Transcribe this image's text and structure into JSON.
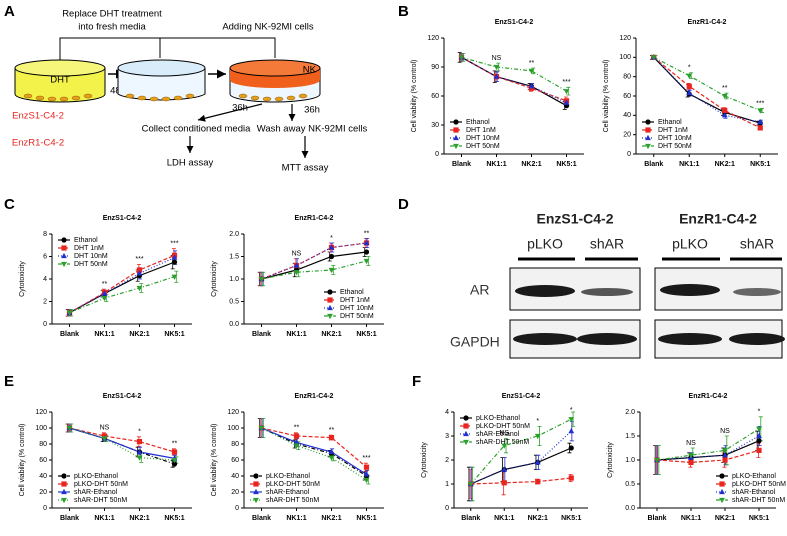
{
  "panel_labels": [
    "A",
    "B",
    "C",
    "D",
    "E",
    "F"
  ],
  "diagram": {
    "replace_text": [
      "Replace DHT treatment",
      "into fresh media"
    ],
    "adding_text": "Adding NK-92MI cells",
    "dish1": "DHT",
    "dish3": "NK",
    "time1": "48h",
    "time2": "36h",
    "time3": "36h",
    "cell_lines": [
      "EnzS1-C4-2",
      "EnzR1-C4-2"
    ],
    "collect": "Collect conditioned media",
    "wash": "Wash away NK-92MI cells",
    "assay1": "LDH assay",
    "assay2": "MTT assay"
  },
  "blot": {
    "titles": [
      "EnzS1-C4-2",
      "EnzR1-C4-2"
    ],
    "lanes": [
      "pLKO",
      "shAR",
      "pLKO",
      "shAR"
    ],
    "rows": [
      "AR",
      "GAPDH"
    ]
  },
  "chart_data": [
    {
      "type": "line",
      "title": "EnzS1-C4-2",
      "ylabel": "Cell viability (% control)",
      "categories": [
        "Blank",
        "NK1:1",
        "NK2:1",
        "NK5:1"
      ],
      "ylim": [
        0,
        120
      ],
      "yticks": [
        0,
        30,
        60,
        90,
        120
      ],
      "legend": "lower left",
      "series": [
        {
          "name": "Ethanol",
          "color": "#000000",
          "marker": "circle",
          "style": "solid",
          "values": [
            100,
            80,
            70,
            50
          ],
          "errors": [
            5,
            6,
            3,
            4
          ]
        },
        {
          "name": "DHT 1nM",
          "color": "#e8251f",
          "marker": "square",
          "style": "dashed",
          "values": [
            100,
            80,
            68,
            55
          ],
          "errors": [
            4,
            5,
            3,
            4
          ]
        },
        {
          "name": "DHT 10nM",
          "color": "#1f2fd0",
          "marker": "triangle-up",
          "style": "dotted",
          "values": [
            100,
            80,
            70,
            53
          ],
          "errors": [
            4,
            5,
            3,
            4
          ]
        },
        {
          "name": "DHT 50nM",
          "color": "#2ca02c",
          "marker": "triangle-down",
          "style": "dashdot",
          "values": [
            100,
            90,
            86,
            65
          ],
          "errors": [
            4,
            4,
            3,
            4
          ]
        }
      ],
      "annotations": [
        {
          "text": "NS",
          "category": "NK1:1"
        },
        {
          "text": "**",
          "category": "NK2:1"
        },
        {
          "text": "***",
          "category": "NK5:1"
        }
      ]
    },
    {
      "type": "line",
      "title": "EnzR1-C4-2",
      "ylabel": "Cell viability (% control)",
      "categories": [
        "Blank",
        "NK1:1",
        "NK2:1",
        "NK5:1"
      ],
      "ylim": [
        0,
        120
      ],
      "yticks": [
        0,
        20,
        40,
        60,
        80,
        100,
        120
      ],
      "legend": "lower left",
      "series": [
        {
          "name": "Ethanol",
          "color": "#000000",
          "marker": "circle",
          "style": "solid",
          "values": [
            100,
            62,
            43,
            32
          ],
          "errors": [
            2,
            3,
            3,
            2
          ]
        },
        {
          "name": "DHT 1nM",
          "color": "#e8251f",
          "marker": "square",
          "style": "dashed",
          "values": [
            100,
            70,
            45,
            27
          ],
          "errors": [
            2,
            3,
            3,
            2
          ]
        },
        {
          "name": "DHT 10nM",
          "color": "#1f2fd0",
          "marker": "triangle-up",
          "style": "dotted",
          "values": [
            100,
            63,
            40,
            33
          ],
          "errors": [
            2,
            3,
            3,
            2
          ]
        },
        {
          "name": "DHT 50nM",
          "color": "#2ca02c",
          "marker": "triangle-down",
          "style": "dashdot",
          "values": [
            100,
            81,
            60,
            45
          ],
          "errors": [
            2,
            3,
            3,
            2
          ]
        }
      ],
      "annotations": [
        {
          "text": "*",
          "category": "NK1:1"
        },
        {
          "text": "**",
          "category": "NK2:1"
        },
        {
          "text": "***",
          "category": "NK5:1"
        }
      ]
    },
    {
      "type": "line",
      "title": "EnzS1-C4-2",
      "ylabel": "Cytotoxicity",
      "categories": [
        "Blank",
        "NK1:1",
        "NK2:1",
        "NK5:1"
      ],
      "ylim": [
        0,
        8
      ],
      "yticks": [
        0,
        2,
        4,
        6,
        8
      ],
      "legend": "upper left",
      "series": [
        {
          "name": "Ethanol",
          "color": "#000000",
          "marker": "circle",
          "style": "solid",
          "values": [
            1,
            2.7,
            4.3,
            5.5
          ],
          "errors": [
            0.3,
            0.3,
            0.5,
            0.6
          ]
        },
        {
          "name": "DHT 1nM",
          "color": "#e8251f",
          "marker": "square",
          "style": "dashed",
          "values": [
            1,
            2.8,
            4.8,
            6.1
          ],
          "errors": [
            0.3,
            0.3,
            0.5,
            0.6
          ]
        },
        {
          "name": "DHT 10nM",
          "color": "#1f2fd0",
          "marker": "triangle-up",
          "style": "dotted",
          "values": [
            1,
            2.7,
            4.5,
            5.9
          ],
          "errors": [
            0.3,
            0.3,
            0.5,
            0.6
          ]
        },
        {
          "name": "DHT 50nM",
          "color": "#2ca02c",
          "marker": "triangle-down",
          "style": "dashdot",
          "values": [
            1,
            2.3,
            3.2,
            4.2
          ],
          "errors": [
            0.3,
            0.3,
            0.4,
            0.5
          ]
        }
      ],
      "annotations": [
        {
          "text": "**",
          "category": "NK1:1"
        },
        {
          "text": "***",
          "category": "NK2:1"
        },
        {
          "text": "***",
          "category": "NK5:1"
        }
      ]
    },
    {
      "type": "line",
      "title": "EnzR1-C4-2",
      "ylabel": "Cytotoxicity",
      "categories": [
        "Blank",
        "NK1:1",
        "NK2:1",
        "NK5:1"
      ],
      "ylim": [
        0,
        2
      ],
      "yticks": [
        {
          "value": 0,
          "label": "0.0"
        },
        {
          "value": 0.5,
          "label": "0.5"
        },
        {
          "value": 1,
          "label": "1.0"
        },
        {
          "value": 1.5,
          "label": "1.5"
        },
        {
          "value": 2,
          "label": "2.0"
        }
      ],
      "legend": "lower right",
      "series": [
        {
          "name": "Ethanol",
          "color": "#000000",
          "marker": "circle",
          "style": "solid",
          "values": [
            1,
            1.2,
            1.5,
            1.6
          ],
          "errors": [
            0.15,
            0.15,
            0.1,
            0.1
          ]
        },
        {
          "name": "DHT 1nM",
          "color": "#e8251f",
          "marker": "square",
          "style": "dashed",
          "values": [
            1,
            1.3,
            1.7,
            1.8
          ],
          "errors": [
            0.15,
            0.15,
            0.1,
            0.1
          ]
        },
        {
          "name": "DHT 10nM",
          "color": "#1f2fd0",
          "marker": "triangle-up",
          "style": "dotted",
          "values": [
            1,
            1.3,
            1.7,
            1.8
          ],
          "errors": [
            0.15,
            0.15,
            0.1,
            0.1
          ]
        },
        {
          "name": "DHT 50nM",
          "color": "#2ca02c",
          "marker": "triangle-down",
          "style": "dashdot",
          "values": [
            1,
            1.15,
            1.2,
            1.4
          ],
          "errors": [
            0.15,
            0.1,
            0.1,
            0.1
          ]
        }
      ],
      "annotations": [
        {
          "text": "NS",
          "category": "NK1:1"
        },
        {
          "text": "*",
          "category": "NK2:1"
        },
        {
          "text": "**",
          "category": "NK5:1"
        }
      ]
    },
    {
      "type": "line",
      "title": "EnzS1-C4-2",
      "ylabel": "Cell viability (% control)",
      "categories": [
        "Blank",
        "NK1:1",
        "NK2:1",
        "NK5:1"
      ],
      "ylim": [
        0,
        120
      ],
      "yticks": [
        0,
        20,
        40,
        60,
        80,
        100,
        120
      ],
      "legend": "lower left",
      "series": [
        {
          "name": "pLKO-Ethanol",
          "color": "#000000",
          "marker": "circle",
          "style": "dashdot",
          "values": [
            100,
            87,
            70,
            55
          ],
          "errors": [
            5,
            4,
            6,
            4
          ]
        },
        {
          "name": "pLKO-DHT 50nM",
          "color": "#e8251f",
          "marker": "square",
          "style": "dashed",
          "values": [
            100,
            90,
            83,
            70
          ],
          "errors": [
            5,
            4,
            6,
            4
          ]
        },
        {
          "name": "shAR-Ethanol",
          "color": "#1f2fd0",
          "marker": "triangle-up",
          "style": "solid",
          "values": [
            100,
            87,
            70,
            62
          ],
          "errors": [
            5,
            4,
            6,
            4
          ]
        },
        {
          "name": "shAR-DHT 50nM",
          "color": "#2ca02c",
          "marker": "triangle-down",
          "style": "dotted",
          "values": [
            100,
            87,
            63,
            60
          ],
          "errors": [
            5,
            4,
            6,
            4
          ]
        }
      ],
      "annotations": [
        {
          "text": "NS",
          "category": "NK1:1"
        },
        {
          "text": "*",
          "category": "NK2:1"
        },
        {
          "text": "**",
          "category": "NK5:1"
        }
      ]
    },
    {
      "type": "line",
      "title": "EnzR1-C4-2",
      "ylabel": "Cell viability (% control)",
      "categories": [
        "Blank",
        "NK1:1",
        "NK2:1",
        "NK5:1"
      ],
      "ylim": [
        0,
        120
      ],
      "yticks": [
        0,
        20,
        40,
        60,
        80,
        100,
        120
      ],
      "legend": "lower left",
      "series": [
        {
          "name": "pLKO-Ethanol",
          "color": "#000000",
          "marker": "circle",
          "style": "dashdot",
          "values": [
            100,
            80,
            68,
            40
          ],
          "errors": [
            12,
            5,
            4,
            5
          ]
        },
        {
          "name": "pLKO-DHT 50nM",
          "color": "#e8251f",
          "marker": "square",
          "style": "dashed",
          "values": [
            100,
            90,
            88,
            51
          ],
          "errors": [
            12,
            4,
            3,
            5
          ]
        },
        {
          "name": "shAR-Ethanol",
          "color": "#1f2fd0",
          "marker": "triangle-up",
          "style": "solid",
          "values": [
            100,
            82,
            70,
            42
          ],
          "errors": [
            12,
            5,
            4,
            5
          ]
        },
        {
          "name": "shAR-DHT 50nM",
          "color": "#2ca02c",
          "marker": "triangle-down",
          "style": "dotted",
          "values": [
            100,
            78,
            63,
            35
          ],
          "errors": [
            12,
            5,
            4,
            5
          ]
        }
      ],
      "annotations": [
        {
          "text": "**",
          "category": "NK1:1"
        },
        {
          "text": "**",
          "category": "NK2:1"
        },
        {
          "text": "***",
          "category": "NK5:1"
        }
      ]
    },
    {
      "type": "line",
      "title": "EnzS1-C4-2",
      "ylabel": "Cytotoxicity",
      "categories": [
        "Blank",
        "NK1:1",
        "NK2:1",
        "NK5:1"
      ],
      "ylim": [
        0,
        4
      ],
      "yticks": [
        0,
        1,
        2,
        3,
        4
      ],
      "legend": "upper left",
      "series": [
        {
          "name": "pLKO-Ethanol",
          "color": "#000000",
          "marker": "circle",
          "style": "solid",
          "values": [
            1,
            1.6,
            1.9,
            2.5
          ],
          "errors": [
            0.7,
            0.5,
            0.3,
            0.2
          ]
        },
        {
          "name": "pLKO-DHT 50nM",
          "color": "#e8251f",
          "marker": "square",
          "style": "dashed",
          "values": [
            1,
            1.05,
            1.1,
            1.25
          ],
          "errors": [
            0.6,
            0.5,
            0.1,
            0.15
          ]
        },
        {
          "name": "shAR-Ethanol",
          "color": "#1f2fd0",
          "marker": "triangle-up",
          "style": "dotted",
          "values": [
            1,
            1.6,
            1.9,
            3.2
          ],
          "errors": [
            0.7,
            0.5,
            0.3,
            0.4
          ]
        },
        {
          "name": "shAR-DHT 50nM",
          "color": "#2ca02c",
          "marker": "triangle-down",
          "style": "dashdot",
          "values": [
            1,
            2.6,
            3.0,
            3.7
          ],
          "errors": [
            0.7,
            0.3,
            0.4,
            0.3
          ]
        }
      ],
      "annotations": [
        {
          "text": "NS",
          "category": "NK1:1"
        },
        {
          "text": "*",
          "category": "NK2:1"
        },
        {
          "text": "*",
          "category": "NK5:1"
        }
      ]
    },
    {
      "type": "line",
      "title": "EnzR1-C4-2",
      "ylabel": "Cytotoxicity",
      "categories": [
        "Blank",
        "NK1:1",
        "NK2:1",
        "NK5:1"
      ],
      "ylim": [
        0,
        2
      ],
      "yticks": [
        {
          "value": 0,
          "label": "0.0"
        },
        {
          "value": 0.5,
          "label": "0.5"
        },
        {
          "value": 1,
          "label": "1.0"
        },
        {
          "value": 1.5,
          "label": "1.5"
        },
        {
          "value": 2,
          "label": "2.0"
        }
      ],
      "legend": "lower right",
      "series": [
        {
          "name": "pLKO-Ethanol",
          "color": "#000000",
          "marker": "circle",
          "style": "solid",
          "values": [
            1,
            1.05,
            1.1,
            1.4
          ],
          "errors": [
            0.3,
            0.1,
            0.15,
            0.2
          ]
        },
        {
          "name": "pLKO-DHT 50nM",
          "color": "#e8251f",
          "marker": "square",
          "style": "dashed",
          "values": [
            1,
            0.95,
            1.0,
            1.2
          ],
          "errors": [
            0.3,
            0.1,
            0.15,
            0.15
          ]
        },
        {
          "name": "shAR-Ethanol",
          "color": "#1f2fd0",
          "marker": "triangle-up",
          "style": "dotted",
          "values": [
            1,
            1.05,
            1.1,
            1.5
          ],
          "errors": [
            0.3,
            0.1,
            0.2,
            0.2
          ]
        },
        {
          "name": "shAR-DHT 50nM",
          "color": "#2ca02c",
          "marker": "triangle-down",
          "style": "dashdot",
          "values": [
            1,
            1.1,
            1.2,
            1.65
          ],
          "errors": [
            0.3,
            0.15,
            0.3,
            0.25
          ]
        }
      ],
      "annotations": [
        {
          "text": "NS",
          "category": "NK1:1"
        },
        {
          "text": "NS",
          "category": "NK2:1"
        },
        {
          "text": "*",
          "category": "NK5:1"
        }
      ]
    }
  ]
}
